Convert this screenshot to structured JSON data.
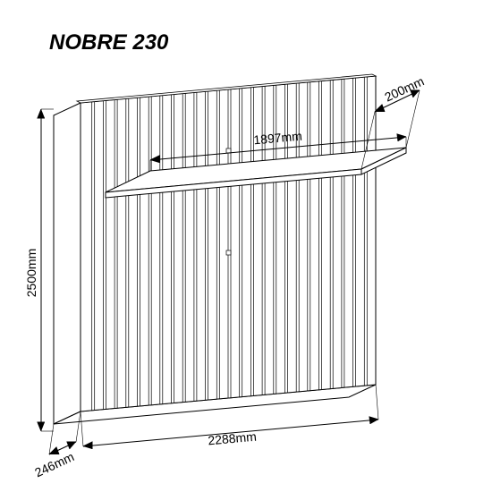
{
  "title": "NOBRE 230",
  "title_fontsize": 24,
  "dimensions": {
    "height": "2500mm",
    "width": "2288mm",
    "depth": "246mm",
    "shelf_width": "1897mm",
    "shelf_depth": "200mm"
  },
  "label_fontsize": 14,
  "colors": {
    "background": "#ffffff",
    "stroke": "#000000",
    "fill_light": "#ffffff"
  },
  "panel": {
    "slat_count": 26,
    "line_width": 1
  },
  "diagram_type": "isometric-technical-drawing"
}
